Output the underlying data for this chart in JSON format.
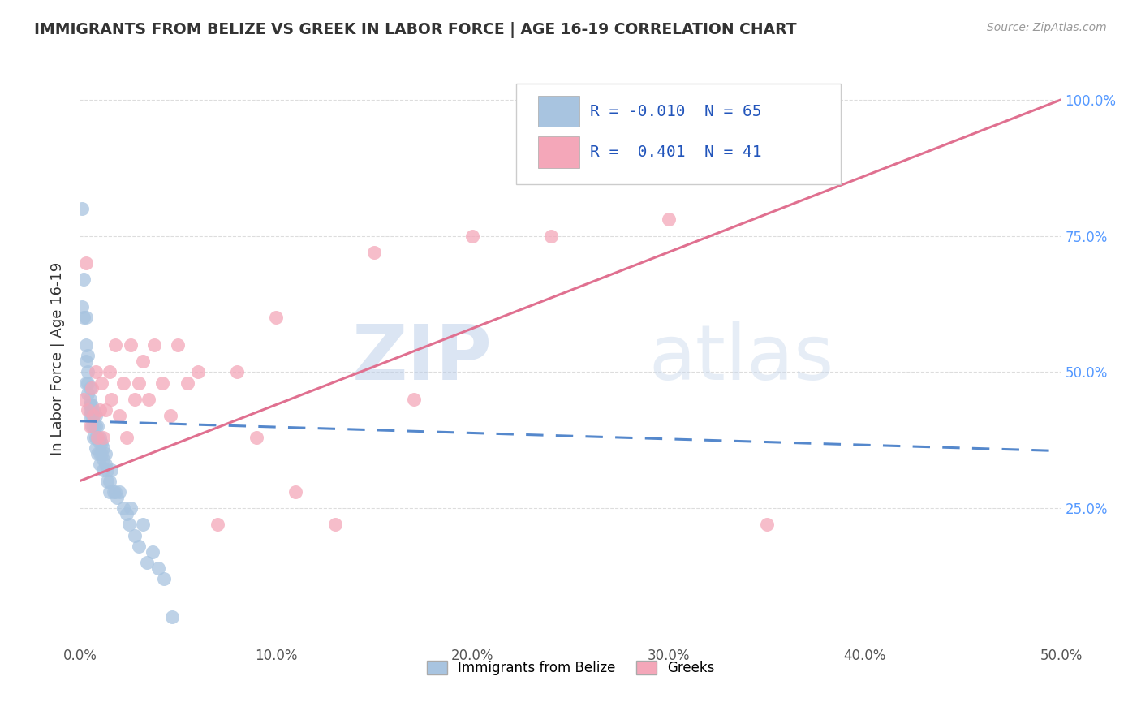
{
  "title": "IMMIGRANTS FROM BELIZE VS GREEK IN LABOR FORCE | AGE 16-19 CORRELATION CHART",
  "source": "Source: ZipAtlas.com",
  "ylabel": "In Labor Force | Age 16-19",
  "xlim": [
    0.0,
    0.5
  ],
  "ylim": [
    0.0,
    1.05
  ],
  "xtick_labels": [
    "0.0%",
    "10.0%",
    "20.0%",
    "30.0%",
    "40.0%",
    "50.0%"
  ],
  "xtick_vals": [
    0.0,
    0.1,
    0.2,
    0.3,
    0.4,
    0.5
  ],
  "ytick_labels": [
    "25.0%",
    "50.0%",
    "75.0%",
    "100.0%"
  ],
  "ytick_vals": [
    0.25,
    0.5,
    0.75,
    1.0
  ],
  "belize_color": "#a8c4e0",
  "greek_color": "#f4a7b9",
  "belize_R": -0.01,
  "belize_N": 65,
  "greek_R": 0.401,
  "greek_N": 41,
  "trend_blue_color": "#5588cc",
  "trend_pink_color": "#e07090",
  "watermark_zip": "ZIP",
  "watermark_atlas": "atlas",
  "legend_label_belize": "Immigrants from Belize",
  "legend_label_greek": "Greeks",
  "belize_x": [
    0.001,
    0.001,
    0.002,
    0.002,
    0.003,
    0.003,
    0.003,
    0.003,
    0.004,
    0.004,
    0.004,
    0.004,
    0.005,
    0.005,
    0.005,
    0.005,
    0.005,
    0.005,
    0.006,
    0.006,
    0.006,
    0.006,
    0.007,
    0.007,
    0.007,
    0.007,
    0.008,
    0.008,
    0.008,
    0.008,
    0.009,
    0.009,
    0.009,
    0.01,
    0.01,
    0.01,
    0.01,
    0.011,
    0.011,
    0.012,
    0.012,
    0.012,
    0.013,
    0.013,
    0.014,
    0.014,
    0.015,
    0.015,
    0.016,
    0.017,
    0.018,
    0.019,
    0.02,
    0.022,
    0.024,
    0.025,
    0.026,
    0.028,
    0.03,
    0.032,
    0.034,
    0.037,
    0.04,
    0.043,
    0.047
  ],
  "belize_y": [
    0.8,
    0.62,
    0.6,
    0.67,
    0.6,
    0.55,
    0.52,
    0.48,
    0.48,
    0.46,
    0.5,
    0.53,
    0.44,
    0.47,
    0.44,
    0.42,
    0.43,
    0.45,
    0.43,
    0.42,
    0.44,
    0.4,
    0.42,
    0.4,
    0.38,
    0.43,
    0.38,
    0.4,
    0.42,
    0.36,
    0.38,
    0.4,
    0.35,
    0.37,
    0.38,
    0.35,
    0.33,
    0.35,
    0.37,
    0.34,
    0.36,
    0.32,
    0.33,
    0.35,
    0.3,
    0.32,
    0.28,
    0.3,
    0.32,
    0.28,
    0.28,
    0.27,
    0.28,
    0.25,
    0.24,
    0.22,
    0.25,
    0.2,
    0.18,
    0.22,
    0.15,
    0.17,
    0.14,
    0.12,
    0.05
  ],
  "greek_x": [
    0.002,
    0.003,
    0.004,
    0.005,
    0.006,
    0.007,
    0.008,
    0.009,
    0.01,
    0.011,
    0.012,
    0.013,
    0.015,
    0.016,
    0.018,
    0.02,
    0.022,
    0.024,
    0.026,
    0.028,
    0.03,
    0.032,
    0.035,
    0.038,
    0.042,
    0.046,
    0.05,
    0.055,
    0.06,
    0.07,
    0.08,
    0.09,
    0.1,
    0.11,
    0.13,
    0.15,
    0.17,
    0.2,
    0.24,
    0.3,
    0.35
  ],
  "greek_y": [
    0.45,
    0.7,
    0.43,
    0.4,
    0.47,
    0.42,
    0.5,
    0.38,
    0.43,
    0.48,
    0.38,
    0.43,
    0.5,
    0.45,
    0.55,
    0.42,
    0.48,
    0.38,
    0.55,
    0.45,
    0.48,
    0.52,
    0.45,
    0.55,
    0.48,
    0.42,
    0.55,
    0.48,
    0.5,
    0.22,
    0.5,
    0.38,
    0.6,
    0.28,
    0.22,
    0.72,
    0.45,
    0.75,
    0.75,
    0.78,
    0.22
  ],
  "belize_trend_x0": 0.0,
  "belize_trend_x1": 0.5,
  "belize_trend_y0": 0.41,
  "belize_trend_y1": 0.355,
  "greek_trend_x0": 0.0,
  "greek_trend_x1": 0.5,
  "greek_trend_y0": 0.3,
  "greek_trend_y1": 1.0
}
